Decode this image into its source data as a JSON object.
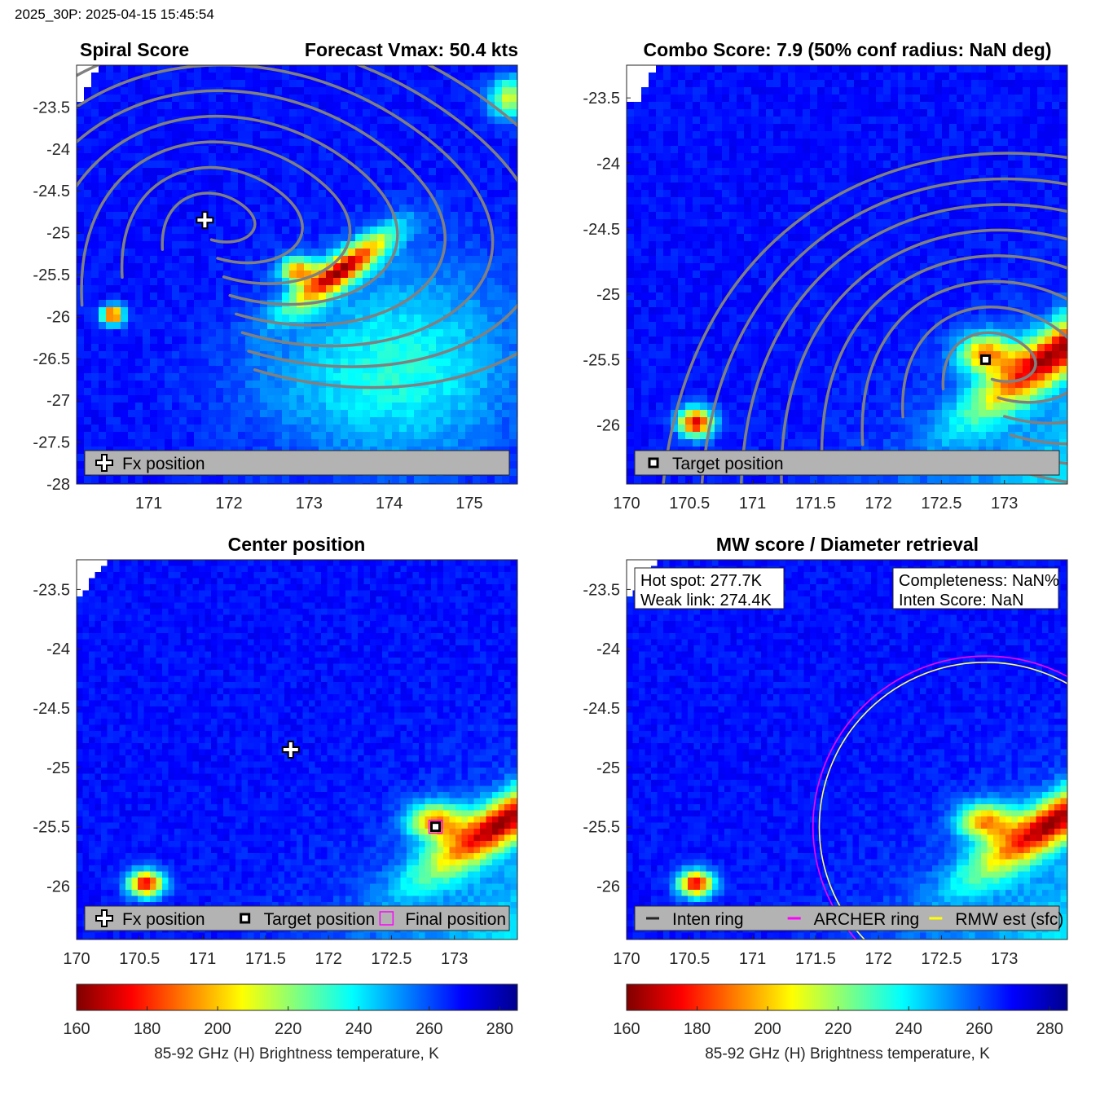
{
  "header": "2025_30P: 2025-04-15 15:45:54",
  "colors": {
    "colormap": [
      "#7f0000",
      "#ff0000",
      "#ff8000",
      "#ffff00",
      "#80ff80",
      "#00ffff",
      "#0080ff",
      "#0000ff",
      "#00008f"
    ],
    "contour": "#808080",
    "land": "#ffffff",
    "legend_bg": "#b3b3b3",
    "archer_ring": "#ff00ff",
    "rmw_ring": "#ffff66"
  },
  "chart_data": [
    {
      "type": "heatmap",
      "title_left": "Spiral Score",
      "title_right": "Forecast Vmax: 50.4 kts",
      "xlim": [
        170.1,
        175.6
      ],
      "ylim": [
        -28,
        -23.0
      ],
      "xticks": [
        171,
        172,
        173,
        174,
        175
      ],
      "yticks": [
        -23.5,
        -24,
        -24.5,
        -25,
        -25.5,
        -26,
        -26.5,
        -27,
        -27.5,
        -28
      ],
      "markers": [
        {
          "kind": "fx",
          "lon": 171.7,
          "lat": -24.85
        }
      ],
      "legend": [
        {
          "icon": "fx-icon",
          "label": "Fx position"
        }
      ],
      "contours": true
    },
    {
      "type": "heatmap",
      "title": "Combo Score: 7.9  (50% conf radius: NaN deg)",
      "xlim": [
        170,
        173.5
      ],
      "ylim": [
        -26.45,
        -23.25
      ],
      "xticks": [
        170,
        170.5,
        171,
        171.5,
        172,
        172.5,
        173
      ],
      "yticks": [
        -23.5,
        -24,
        -24.5,
        -25,
        -25.5,
        -26
      ],
      "markers": [
        {
          "kind": "target",
          "lon": 172.85,
          "lat": -25.5
        }
      ],
      "legend": [
        {
          "icon": "target-icon",
          "label": "Target position"
        }
      ],
      "contours": true
    },
    {
      "type": "heatmap",
      "title": "Center position",
      "xlim": [
        170,
        173.5
      ],
      "ylim": [
        -26.45,
        -23.25
      ],
      "xticks": [
        170,
        170.5,
        171,
        171.5,
        172,
        172.5,
        173
      ],
      "yticks": [
        -23.5,
        -24,
        -24.5,
        -25,
        -25.5,
        -26
      ],
      "markers": [
        {
          "kind": "fx",
          "lon": 171.7,
          "lat": -24.85
        },
        {
          "kind": "target",
          "lon": 172.85,
          "lat": -25.5
        },
        {
          "kind": "final",
          "lon": 172.85,
          "lat": -25.5
        }
      ],
      "legend": [
        {
          "icon": "fx-icon",
          "label": "Fx position"
        },
        {
          "icon": "target-icon",
          "label": "Target position"
        },
        {
          "icon": "final-icon",
          "label": "Final position"
        }
      ],
      "contours": false
    },
    {
      "type": "heatmap",
      "title": "MW score / Diameter retrieval",
      "xlim": [
        170,
        173.5
      ],
      "ylim": [
        -26.45,
        -23.25
      ],
      "xticks": [
        170,
        170.5,
        171,
        171.5,
        172,
        172.5,
        173
      ],
      "yticks": [
        -23.5,
        -24,
        -24.5,
        -25,
        -25.5,
        -26
      ],
      "markers": [],
      "info_left": [
        "Hot spot: 277.7K",
        "Weak link: 274.4K"
      ],
      "info_right": [
        "Completeness: NaN%",
        "Inten Score: NaN"
      ],
      "legend": [
        {
          "icon": "inten-ring-icon",
          "label": "Inten ring"
        },
        {
          "icon": "archer-ring-icon",
          "label": "ARCHER ring"
        },
        {
          "icon": "rmw-ring-icon",
          "label": "RMW est (sfc)"
        }
      ],
      "rings": [
        {
          "name": "ARCHER ring",
          "center_lon": 172.85,
          "center_lat": -25.5,
          "radius_deg": 1.37
        },
        {
          "name": "RMW est (sfc)",
          "center_lon": 172.85,
          "center_lat": -25.5,
          "radius_deg": 1.32
        }
      ],
      "contours": false
    }
  ],
  "colorbars": [
    {
      "ticks": [
        160,
        180,
        200,
        220,
        240,
        260,
        280
      ],
      "range": [
        160,
        285
      ],
      "label": "85-92 GHz (H) Brightness temperature, K"
    },
    {
      "ticks": [
        160,
        180,
        200,
        220,
        240,
        260,
        280
      ],
      "range": [
        160,
        285
      ],
      "label": "85-92 GHz (H) Brightness temperature, K"
    }
  ]
}
